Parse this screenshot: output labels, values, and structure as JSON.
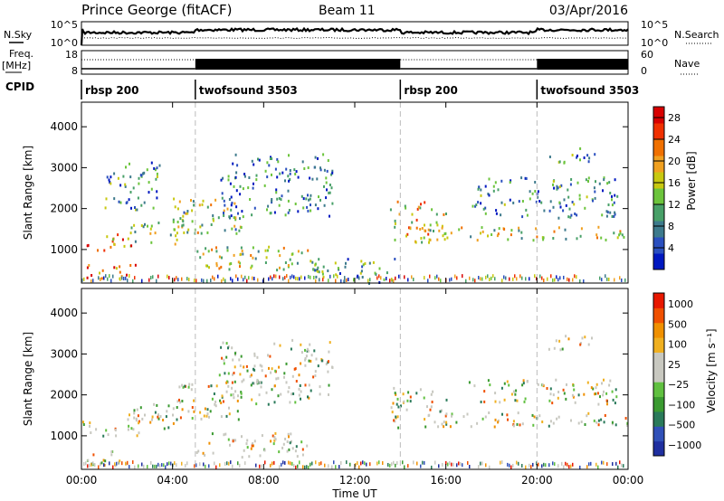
{
  "header": {
    "station": "Prince George (fitACF)",
    "beam": "Beam 11",
    "date": "03/Apr/2016"
  },
  "panels": {
    "nsky": {
      "label": "N.Sky",
      "left_ticks": [
        "10^5",
        "10^0"
      ],
      "right_ticks": [
        "10^5",
        "10^0"
      ],
      "right_label": "N.Search"
    },
    "freq": {
      "label_top": "Freq.",
      "label_unit": "[MHz]",
      "left_ticks": [
        "18",
        "8"
      ],
      "right_ticks": [
        "60",
        "0"
      ],
      "right_label": "Nave"
    },
    "cpid": {
      "label": "CPID",
      "segments": [
        {
          "name": "rbsp 200",
          "start_hour": 0
        },
        {
          "name": "twofsound 3503",
          "start_hour": 5
        },
        {
          "name": "rbsp 200",
          "start_hour": 14
        },
        {
          "name": "twofsound 3503",
          "start_hour": 20
        }
      ]
    }
  },
  "chart_data": [
    {
      "type": "heatmap",
      "title": "",
      "xlabel": "Time UT",
      "ylabel": "Slant Range [km]",
      "x_ticks": [
        "00:00",
        "04:00",
        "08:00",
        "12:00",
        "16:00",
        "20:00",
        "00:00"
      ],
      "xlim_hours": [
        0,
        24
      ],
      "y_ticks": [
        1000,
        2000,
        3000,
        4000
      ],
      "ylim": [
        180,
        4600
      ],
      "colorbar": {
        "label": "Power [dB]",
        "ticks": [
          4,
          8,
          12,
          16,
          20,
          24,
          28
        ],
        "range": [
          0,
          30
        ],
        "colors": [
          "#0018c0",
          "#2a4fbf",
          "#3d7a8c",
          "#48a068",
          "#6cc43c",
          "#c8c810",
          "#f0a020",
          "#f07000",
          "#f03000",
          "#d80000"
        ]
      },
      "echo_regions": [
        {
          "t0": 0.0,
          "t1": 2.2,
          "r0": 1000,
          "r1": 1400,
          "level": 0.75
        },
        {
          "t0": 0.2,
          "t1": 2.5,
          "r0": 300,
          "r1": 650,
          "level": 0.85
        },
        {
          "t0": 2.0,
          "t1": 4.5,
          "r0": 1150,
          "r1": 1800,
          "level": 0.5
        },
        {
          "t0": 1.0,
          "t1": 3.5,
          "r0": 2000,
          "r1": 3200,
          "level": 0.25
        },
        {
          "t0": 4.0,
          "t1": 7.0,
          "r0": 1400,
          "r1": 2300,
          "level": 0.45
        },
        {
          "t0": 5.0,
          "t1": 10.0,
          "r0": 500,
          "r1": 1100,
          "level": 0.5
        },
        {
          "t0": 6.0,
          "t1": 11.0,
          "r0": 1800,
          "r1": 3400,
          "level": 0.2
        },
        {
          "t0": 10.0,
          "t1": 14.0,
          "r0": 200,
          "r1": 800,
          "level": 0.3
        },
        {
          "t0": 13.5,
          "t1": 16.0,
          "r0": 1200,
          "r1": 2200,
          "level": 0.6
        },
        {
          "t0": 15.0,
          "t1": 24.0,
          "r0": 1250,
          "r1": 1600,
          "level": 0.5
        },
        {
          "t0": 17.0,
          "t1": 23.5,
          "r0": 1800,
          "r1": 2800,
          "level": 0.25
        },
        {
          "t0": 20.5,
          "t1": 22.5,
          "r0": 3100,
          "r1": 3500,
          "level": 0.3
        }
      ]
    },
    {
      "type": "heatmap",
      "title": "",
      "xlabel": "Time UT",
      "ylabel": "Slant Range [km]",
      "x_ticks": [
        "00:00",
        "04:00",
        "08:00",
        "12:00",
        "16:00",
        "20:00",
        "00:00"
      ],
      "xlim_hours": [
        0,
        24
      ],
      "y_ticks": [
        1000,
        2000,
        3000,
        4000
      ],
      "ylim": [
        180,
        4600
      ],
      "colorbar": {
        "label": "Velocity [m s⁻¹]",
        "ticks": [
          "1000",
          "500",
          "100",
          "25",
          "−25",
          "−100",
          "−500",
          "−1000"
        ],
        "colors": [
          "#1f2fa0",
          "#3050b8",
          "#2a7a5a",
          "#3a9a30",
          "#60c040",
          "#c8c8c0",
          "#c8c8c0",
          "#f0b020",
          "#f09000",
          "#f05000",
          "#e81800"
        ]
      },
      "echo_regions": [
        {
          "t0": 0.0,
          "t1": 2.5,
          "r0": 1000,
          "r1": 1400,
          "level": 0.5
        },
        {
          "t0": 0.2,
          "t1": 2.5,
          "r0": 300,
          "r1": 650,
          "level": 0.35
        },
        {
          "t0": 2.0,
          "t1": 4.5,
          "r0": 1150,
          "r1": 1800,
          "level": 0.5
        },
        {
          "t0": 4.0,
          "t1": 7.0,
          "r0": 1400,
          "r1": 2300,
          "level": 0.5
        },
        {
          "t0": 5.0,
          "t1": 10.0,
          "r0": 500,
          "r1": 1100,
          "level": 0.55
        },
        {
          "t0": 6.0,
          "t1": 11.0,
          "r0": 1800,
          "r1": 3400,
          "level": 0.5
        },
        {
          "t0": 13.5,
          "t1": 16.0,
          "r0": 1200,
          "r1": 2200,
          "level": 0.3
        },
        {
          "t0": 15.0,
          "t1": 24.0,
          "r0": 1250,
          "r1": 1600,
          "level": 0.5
        },
        {
          "t0": 17.0,
          "t1": 23.5,
          "r0": 1800,
          "r1": 2400,
          "level": 0.25
        },
        {
          "t0": 20.5,
          "t1": 22.5,
          "r0": 3100,
          "r1": 3500,
          "level": 0.5
        }
      ]
    }
  ]
}
